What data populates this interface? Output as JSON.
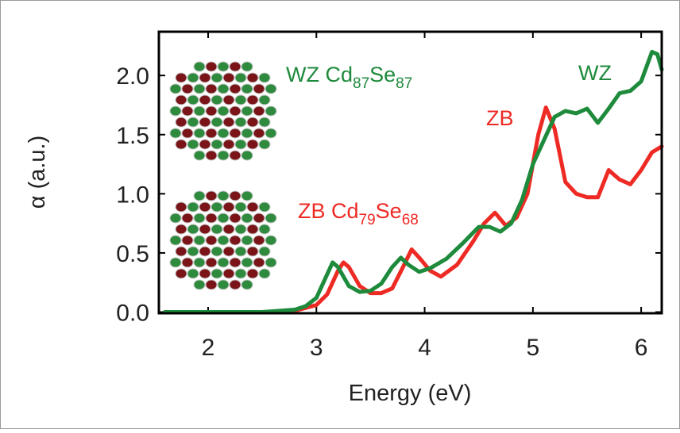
{
  "chart_data": {
    "type": "line",
    "x_label": "Energy (eV)",
    "y_label": "α (a.u.)",
    "xlim": [
      1.545,
      6.19
    ],
    "ylim": [
      -0.01,
      2.37
    ],
    "xticks": [
      2,
      3,
      4,
      5,
      6
    ],
    "yticks": [
      {
        "value": 0,
        "label": "0.0"
      },
      {
        "value": 0.5,
        "label": "0.5"
      },
      {
        "value": 1,
        "label": "1.0"
      },
      {
        "value": 1.5,
        "label": "1.5"
      },
      {
        "value": 2,
        "label": "2.0"
      }
    ],
    "series": [
      {
        "name": "WZ",
        "color": "#1e8a3c",
        "x": [
          1.6,
          2.0,
          2.5,
          2.8,
          2.9,
          3.0,
          3.1,
          3.15,
          3.2,
          3.3,
          3.4,
          3.5,
          3.6,
          3.7,
          3.78,
          3.85,
          3.95,
          4.05,
          4.2,
          4.35,
          4.5,
          4.6,
          4.7,
          4.8,
          4.9,
          5.0,
          5.1,
          5.2,
          5.3,
          5.4,
          5.5,
          5.6,
          5.7,
          5.8,
          5.9,
          6.0,
          6.1,
          6.15,
          6.19
        ],
        "values": [
          0,
          0,
          0,
          0.02,
          0.05,
          0.12,
          0.32,
          0.42,
          0.38,
          0.22,
          0.17,
          0.18,
          0.24,
          0.38,
          0.46,
          0.4,
          0.34,
          0.37,
          0.45,
          0.58,
          0.72,
          0.72,
          0.68,
          0.75,
          0.95,
          1.25,
          1.45,
          1.65,
          1.7,
          1.68,
          1.72,
          1.6,
          1.72,
          1.85,
          1.87,
          1.95,
          2.2,
          2.18,
          2.05
        ]
      },
      {
        "name": "ZB",
        "color": "#ee2a24",
        "x": [
          1.6,
          2.5,
          2.8,
          3.0,
          3.1,
          3.2,
          3.25,
          3.3,
          3.4,
          3.5,
          3.6,
          3.7,
          3.8,
          3.88,
          3.95,
          4.05,
          4.15,
          4.3,
          4.45,
          4.55,
          4.65,
          4.75,
          4.85,
          4.95,
          5.05,
          5.12,
          5.2,
          5.3,
          5.4,
          5.5,
          5.6,
          5.7,
          5.8,
          5.9,
          6.0,
          6.1,
          6.19
        ],
        "values": [
          0,
          0,
          0.01,
          0.06,
          0.15,
          0.35,
          0.42,
          0.38,
          0.22,
          0.16,
          0.16,
          0.2,
          0.38,
          0.53,
          0.46,
          0.35,
          0.3,
          0.4,
          0.6,
          0.75,
          0.84,
          0.73,
          0.8,
          1.0,
          1.5,
          1.73,
          1.55,
          1.1,
          1.0,
          0.97,
          0.97,
          1.2,
          1.12,
          1.08,
          1.2,
          1.35,
          1.4
        ]
      }
    ],
    "annotations": [
      {
        "parts": [
          "WZ Cd",
          "87",
          "Se",
          "87"
        ],
        "color": "#1e8a3c"
      },
      {
        "parts": [
          "ZB Cd",
          "79",
          "Se",
          "68"
        ],
        "color": "#ee2a24"
      },
      {
        "parts": [
          "ZB"
        ],
        "color": "#ee2a24"
      },
      {
        "parts": [
          "WZ"
        ],
        "color": "#1e8a3c"
      }
    ]
  }
}
